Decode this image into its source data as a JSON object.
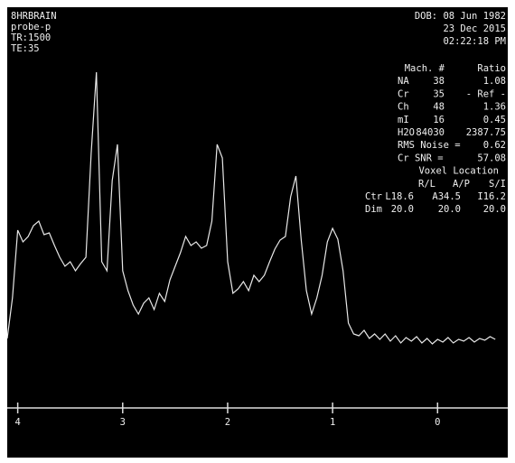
{
  "header": {
    "left": [
      "8HRBRAIN",
      "probe-p",
      "TR:1500",
      "TE:35"
    ],
    "dob": "DOB: 08 Jun 1982",
    "date": "23 Dec 2015",
    "time": "02:22:18 PM"
  },
  "table": {
    "header": [
      "Mach. #",
      "Ratio"
    ],
    "rows": [
      [
        "NA",
        "38",
        "1.08"
      ],
      [
        "Cr",
        "35",
        "- Ref -"
      ],
      [
        "Ch",
        "48",
        "1.36"
      ],
      [
        "mI",
        "16",
        "0.45"
      ],
      [
        "H2O",
        "84030",
        "2387.75"
      ]
    ]
  },
  "stats": [
    [
      "RMS Noise =",
      "0.62"
    ],
    [
      "Cr SNR =",
      "57.08"
    ]
  ],
  "voxel": {
    "title": "Voxel Location",
    "header": [
      "R/L",
      "A/P",
      "S/I"
    ],
    "rows": [
      [
        "Ctr",
        "L18.6",
        "A34.5",
        "I16.2"
      ],
      [
        "Dim",
        "20.0",
        "20.0",
        "20.0"
      ]
    ]
  },
  "chart_data": {
    "type": "line",
    "x": [
      4.1,
      4.05,
      4.0,
      3.95,
      3.9,
      3.85,
      3.8,
      3.75,
      3.7,
      3.65,
      3.6,
      3.55,
      3.5,
      3.45,
      3.4,
      3.35,
      3.3,
      3.25,
      3.2,
      3.15,
      3.1,
      3.05,
      3.0,
      2.95,
      2.9,
      2.85,
      2.8,
      2.75,
      2.7,
      2.65,
      2.6,
      2.55,
      2.5,
      2.45,
      2.4,
      2.35,
      2.3,
      2.25,
      2.2,
      2.15,
      2.1,
      2.05,
      2.0,
      1.95,
      1.9,
      1.85,
      1.8,
      1.75,
      1.7,
      1.65,
      1.6,
      1.55,
      1.5,
      1.45,
      1.4,
      1.35,
      1.3,
      1.25,
      1.2,
      1.15,
      1.1,
      1.05,
      1.0,
      0.95,
      0.9,
      0.85,
      0.8,
      0.75,
      0.7,
      0.65,
      0.6,
      0.55,
      0.5,
      0.45,
      0.4,
      0.35,
      0.3,
      0.25,
      0.2,
      0.15,
      0.1,
      0.05,
      0.0,
      -0.05,
      -0.1,
      -0.15,
      -0.2,
      -0.25,
      -0.3,
      -0.35,
      -0.4,
      -0.45,
      -0.5,
      -0.55
    ],
    "series": [
      {
        "color": "#e8e8e8",
        "values": [
          35,
          80,
          155,
          142,
          148,
          160,
          165,
          150,
          152,
          138,
          125,
          115,
          120,
          110,
          118,
          125,
          240,
          330,
          120,
          110,
          210,
          250,
          110,
          88,
          72,
          62,
          74,
          80,
          67,
          85,
          76,
          100,
          115,
          130,
          148,
          138,
          142,
          135,
          138,
          165,
          250,
          235,
          120,
          85,
          90,
          98,
          88,
          105,
          98,
          105,
          120,
          134,
          144,
          148,
          192,
          215,
          145,
          88,
          62,
          80,
          105,
          142,
          157,
          145,
          110,
          52,
          40,
          38,
          44,
          35,
          40,
          34,
          40,
          32,
          38,
          30,
          36,
          32,
          37,
          30,
          35,
          29,
          34,
          31,
          36,
          30,
          34,
          32,
          36,
          31,
          35,
          33,
          37,
          34
        ]
      }
    ],
    "xlim": [
      4.1,
      -0.6
    ],
    "ylim": [
      0,
      350
    ],
    "xticks": [
      4,
      3,
      2,
      1,
      0
    ]
  }
}
